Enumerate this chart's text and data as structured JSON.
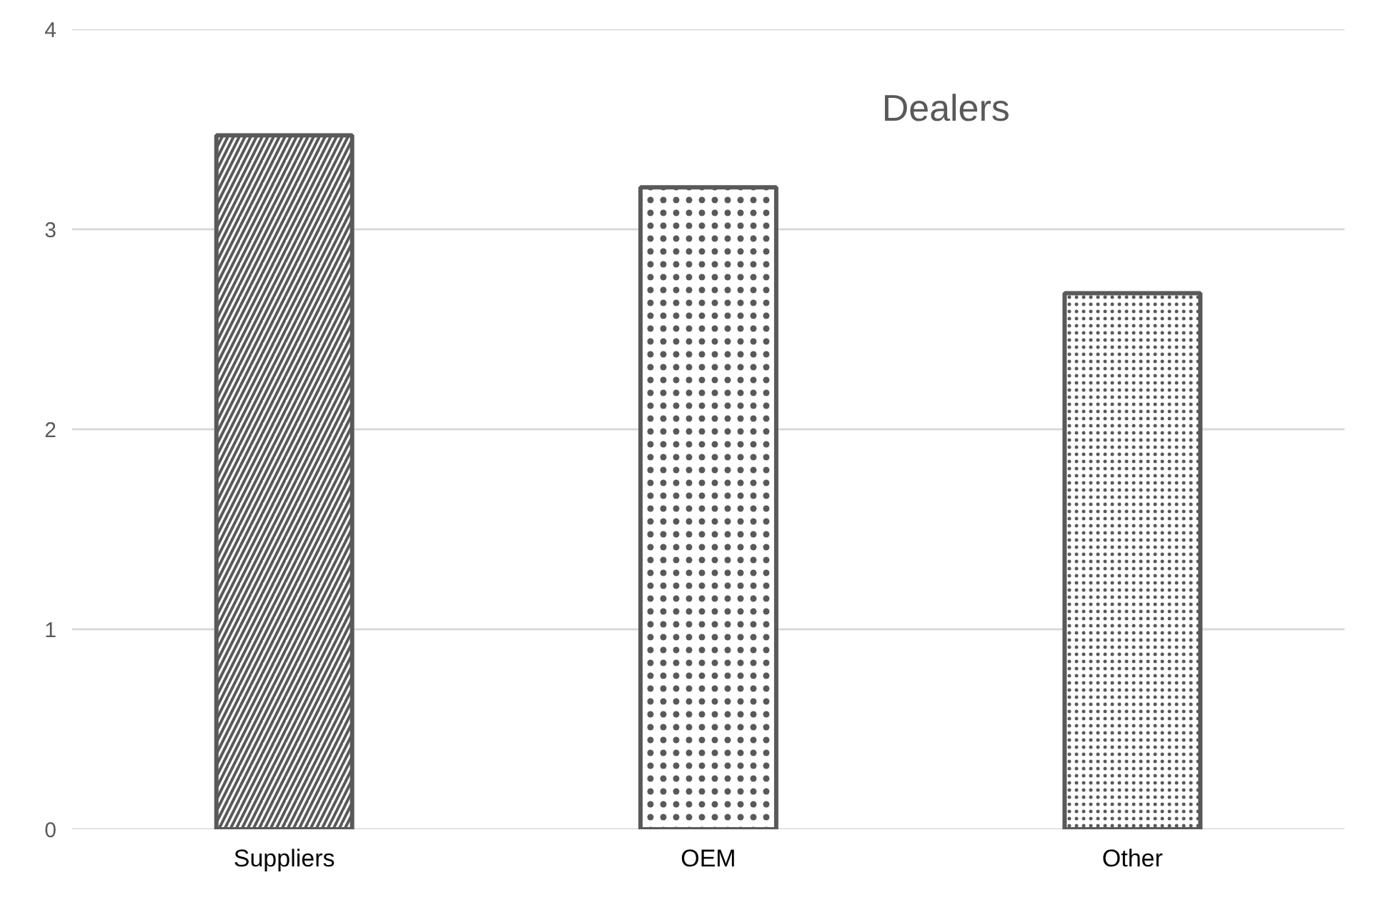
{
  "chart_data": {
    "type": "bar",
    "title": "Dealers",
    "categories": [
      "Suppliers",
      "OEM",
      "Other"
    ],
    "values": [
      3.47,
      3.21,
      2.68
    ],
    "color": "#595959",
    "ylim": [
      0,
      4
    ],
    "yticks": [
      0,
      1,
      2,
      3,
      4
    ],
    "grid": "y"
  }
}
